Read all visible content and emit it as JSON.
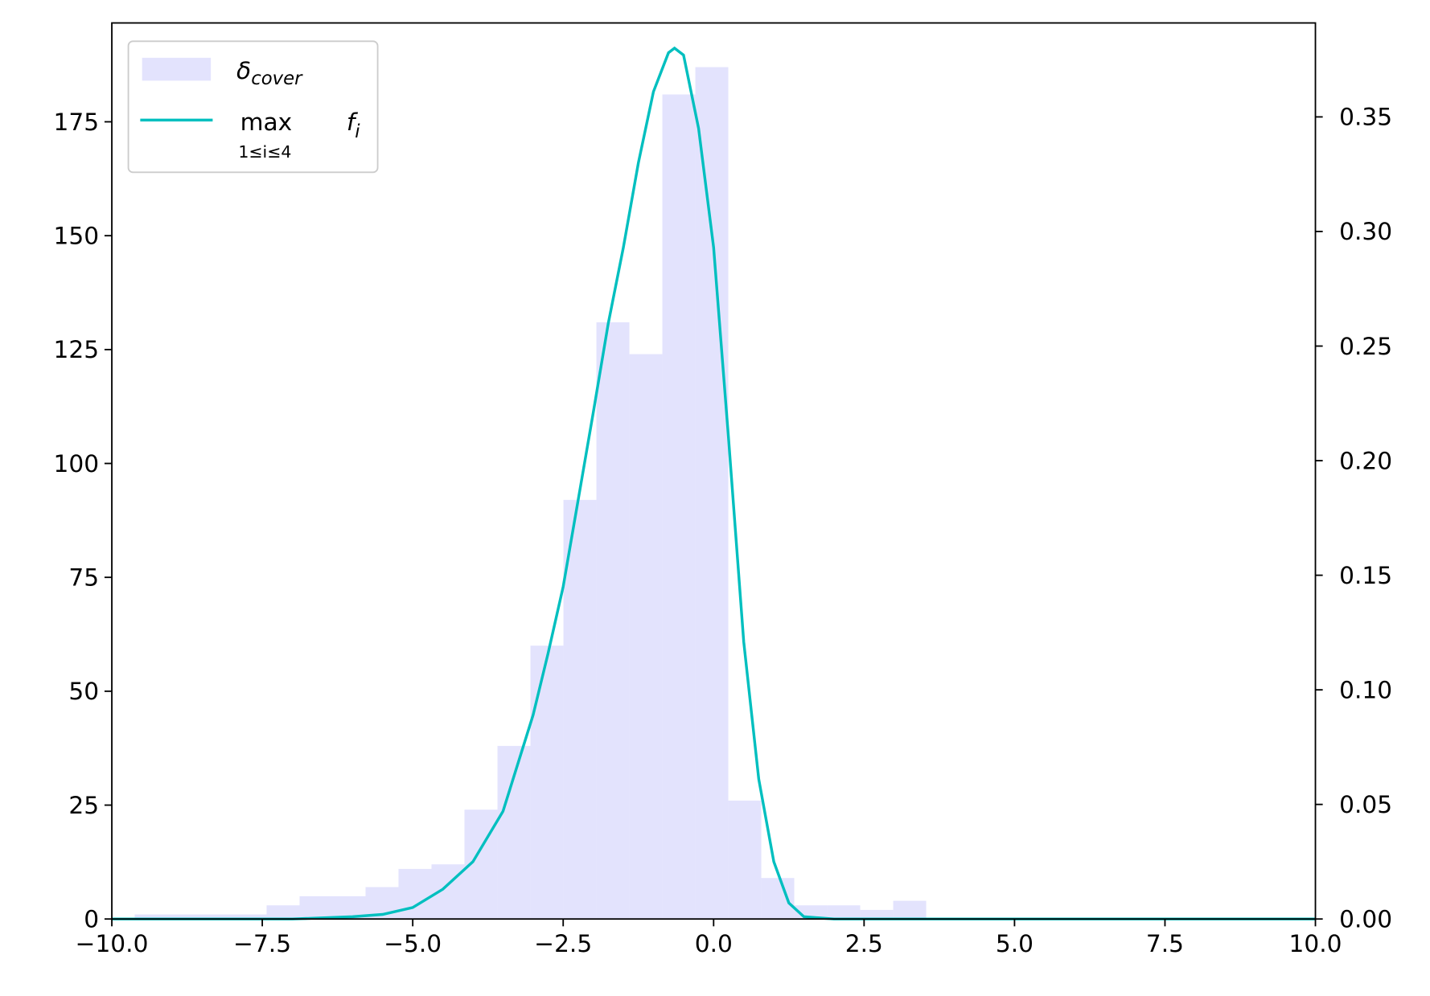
{
  "chart_data": {
    "type": "histogram",
    "bins": [
      -9.62,
      -9.072,
      -8.524,
      -7.976,
      -7.428,
      -6.88,
      -6.332,
      -5.784,
      -5.236,
      -4.688,
      -4.14,
      -3.592,
      -3.044,
      -2.496,
      -1.948,
      -1.4,
      -0.852,
      -0.304,
      0.244,
      0.792,
      1.34,
      1.888,
      2.436,
      2.984,
      3.532
    ],
    "series": [
      {
        "name": "δcover",
        "type": "histogram",
        "color": "#e3e3fd",
        "values": [
          1,
          1,
          1,
          1,
          3,
          5,
          5,
          7,
          11,
          12,
          24,
          38,
          60,
          92,
          131,
          124,
          181,
          187,
          26,
          9,
          3,
          3,
          2,
          4
        ]
      },
      {
        "name": "max1≤i≤4fi",
        "type": "line",
        "color": "#00bfbf",
        "axis": "y2",
        "x": [
          -10,
          -7,
          -6,
          -5.5,
          -5,
          -4.5,
          -4,
          -3.5,
          -3,
          -2.75,
          -2.5,
          -2.25,
          -2,
          -1.75,
          -1.5,
          -1.25,
          -1,
          -0.75,
          -0.65,
          -0.5,
          -0.25,
          0,
          0.25,
          0.5,
          0.75,
          1,
          1.25,
          1.5,
          2,
          3,
          10
        ],
        "values": [
          0,
          0,
          0.001,
          0.002,
          0.005,
          0.013,
          0.025,
          0.047,
          0.089,
          0.116,
          0.145,
          0.183,
          0.221,
          0.26,
          0.293,
          0.33,
          0.361,
          0.378,
          0.38,
          0.377,
          0.345,
          0.293,
          0.209,
          0.121,
          0.061,
          0.025,
          0.007,
          0.001,
          0,
          0,
          0
        ]
      }
    ],
    "xlim": [
      -10,
      10
    ],
    "xticks": [
      {
        "value": -10,
        "label": "−10.0"
      },
      {
        "value": -7.5,
        "label": "−7.5"
      },
      {
        "value": -5,
        "label": "−5.0"
      },
      {
        "value": -2.5,
        "label": "−2.5"
      },
      {
        "value": 0,
        "label": "0.0"
      },
      {
        "value": 2.5,
        "label": "2.5"
      },
      {
        "value": 5,
        "label": "5.0"
      },
      {
        "value": 7.5,
        "label": "7.5"
      },
      {
        "value": 10,
        "label": "10.0"
      }
    ],
    "ylim": [
      0,
      196.7
    ],
    "yticks": [
      0,
      25,
      50,
      75,
      100,
      125,
      150,
      175
    ],
    "y2lim": [
      0,
      0.391
    ],
    "y2ticks": [
      {
        "value": 0,
        "label": "0.00"
      },
      {
        "value": 0.05,
        "label": "0.05"
      },
      {
        "value": 0.1,
        "label": "0.10"
      },
      {
        "value": 0.15,
        "label": "0.15"
      },
      {
        "value": 0.2,
        "label": "0.20"
      },
      {
        "value": 0.25,
        "label": "0.25"
      },
      {
        "value": 0.3,
        "label": "0.30"
      },
      {
        "value": 0.35,
        "label": "0.35"
      }
    ],
    "legend": "upper left"
  }
}
